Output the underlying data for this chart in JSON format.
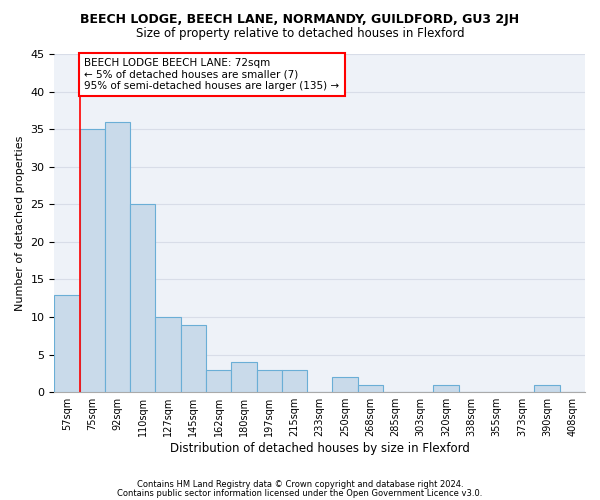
{
  "title": "BEECH LODGE, BEECH LANE, NORMANDY, GUILDFORD, GU3 2JH",
  "subtitle": "Size of property relative to detached houses in Flexford",
  "xlabel": "Distribution of detached houses by size in Flexford",
  "ylabel": "Number of detached properties",
  "categories": [
    "57sqm",
    "75sqm",
    "92sqm",
    "110sqm",
    "127sqm",
    "145sqm",
    "162sqm",
    "180sqm",
    "197sqm",
    "215sqm",
    "233sqm",
    "250sqm",
    "268sqm",
    "285sqm",
    "303sqm",
    "320sqm",
    "338sqm",
    "355sqm",
    "373sqm",
    "390sqm",
    "408sqm"
  ],
  "values": [
    13,
    35,
    36,
    25,
    10,
    9,
    3,
    4,
    3,
    3,
    0,
    2,
    1,
    0,
    0,
    1,
    0,
    0,
    0,
    1,
    0
  ],
  "bar_color": "#c9daea",
  "bar_edge_color": "#6aaed6",
  "background_color": "#ffffff",
  "plot_bg_color": "#eef2f8",
  "grid_color": "#d8dde8",
  "annotation_line1": "BEECH LODGE BEECH LANE: 72sqm",
  "annotation_line2": "← 5% of detached houses are smaller (7)",
  "annotation_line3": "95% of semi-detached houses are larger (135) →",
  "red_line_x": 0.5,
  "ylim": [
    0,
    45
  ],
  "yticks": [
    0,
    5,
    10,
    15,
    20,
    25,
    30,
    35,
    40,
    45
  ],
  "footnote1": "Contains HM Land Registry data © Crown copyright and database right 2024.",
  "footnote2": "Contains public sector information licensed under the Open Government Licence v3.0."
}
